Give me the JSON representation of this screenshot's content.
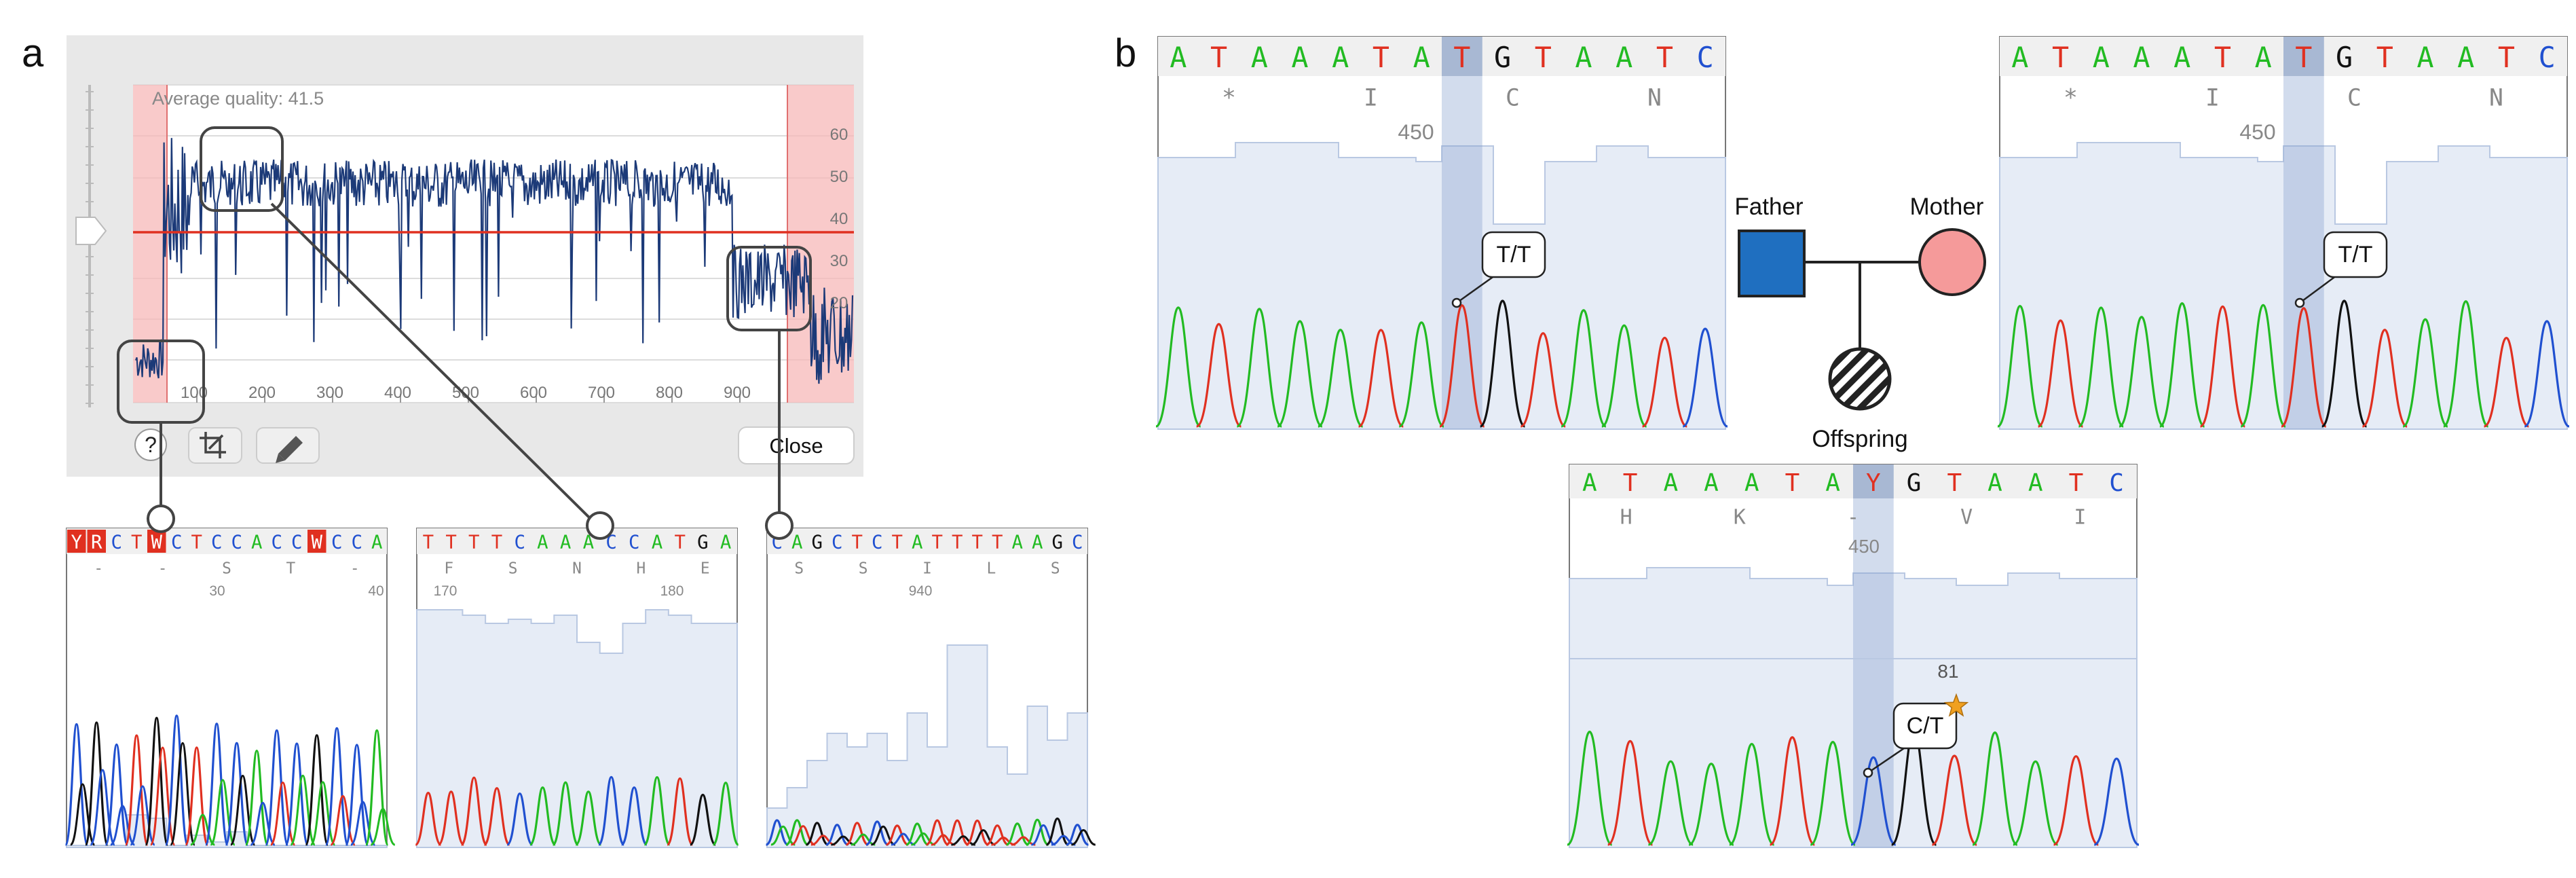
{
  "colors": {
    "A": "#22bb22",
    "T": "#e03020",
    "G": "#111111",
    "C": "#2050d0",
    "quality_line": "#1c3a78",
    "threshold": "#e03020",
    "trim_zone": "#f7b8b8",
    "father": "#1f6fc0",
    "mother": "#f59a9a",
    "star": "#f0a020",
    "qual_fill": "#e6ecf6"
  },
  "panel_a": {
    "label": "a",
    "average_quality": "Average quality: 41.5",
    "x_ticks": [
      "100",
      "200",
      "300",
      "400",
      "500",
      "600",
      "700",
      "800",
      "900"
    ],
    "y_ticks": [
      "60",
      "50",
      "40",
      "30",
      "20"
    ],
    "close_label": "Close",
    "help_icon_text": "?",
    "icons": [
      "help-icon",
      "crop-icon",
      "pencil-icon"
    ],
    "zoom_left": {
      "bases": [
        "Y",
        "R",
        "C",
        "T",
        "W",
        "C",
        "T",
        "C",
        "C",
        "A",
        "C",
        "C",
        "W",
        "C",
        "C",
        "A"
      ],
      "highlight_idx": [
        0,
        1,
        4,
        12
      ],
      "aa": [
        "-",
        "-",
        "S",
        "T",
        "-"
      ],
      "positions": [
        "30",
        "40"
      ]
    },
    "zoom_mid": {
      "bases": [
        "T",
        "T",
        "T",
        "T",
        "C",
        "A",
        "A",
        "A",
        "C",
        "C",
        "A",
        "T",
        "G",
        "A"
      ],
      "aa": [
        "F",
        "S",
        "N",
        "H",
        "E"
      ],
      "positions": [
        "170",
        "180"
      ]
    },
    "zoom_right": {
      "bases": [
        "C",
        "A",
        "G",
        "C",
        "T",
        "C",
        "T",
        "A",
        "T",
        "T",
        "T",
        "T",
        "A",
        "A",
        "G",
        "C"
      ],
      "aa": [
        "S",
        "S",
        "I",
        "L",
        "S"
      ],
      "positions": [
        "940"
      ]
    }
  },
  "panel_b": {
    "label": "b",
    "father_label": "Father",
    "mother_label": "Mother",
    "offspring_label": "Offspring",
    "father_trace": {
      "bases": [
        "A",
        "T",
        "A",
        "A",
        "A",
        "T",
        "A",
        "T",
        "G",
        "T",
        "A",
        "A",
        "T",
        "C"
      ],
      "highlight_idx": 7,
      "aa": [
        "*",
        "I",
        "C",
        "N"
      ],
      "position": "450",
      "genotype": "T/T"
    },
    "mother_trace": {
      "bases": [
        "A",
        "T",
        "A",
        "A",
        "A",
        "T",
        "A",
        "T",
        "G",
        "T",
        "A",
        "A",
        "T",
        "C"
      ],
      "highlight_idx": 7,
      "aa": [
        "*",
        "I",
        "C",
        "N"
      ],
      "position": "450",
      "genotype": "T/T"
    },
    "offspring_trace": {
      "bases": [
        "A",
        "T",
        "A",
        "A",
        "A",
        "T",
        "A",
        "Y",
        "G",
        "T",
        "A",
        "A",
        "T",
        "C"
      ],
      "highlight_idx": 7,
      "aa": [
        "H",
        "K",
        "-",
        "V",
        "I"
      ],
      "position": "450",
      "quality_value": "81",
      "genotype": "C/T"
    }
  }
}
